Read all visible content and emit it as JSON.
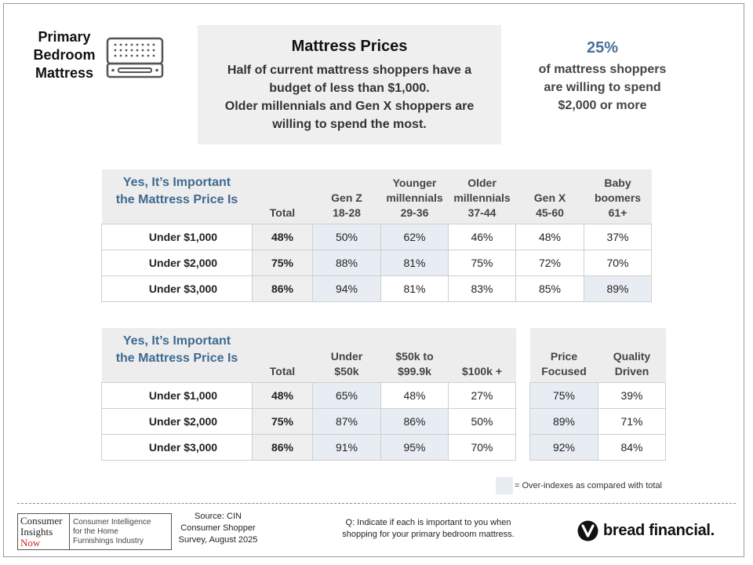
{
  "section": {
    "title_lines": [
      "Primary",
      "Bedroom",
      "Mattress"
    ]
  },
  "headline": {
    "title": "Mattress Prices",
    "body_lines": [
      "Half of current mattress shoppers have a",
      "budget of less than $1,000.",
      "Older millennials and Gen X shoppers are",
      "willing to spend the most."
    ]
  },
  "stat": {
    "value": "25%",
    "lines": [
      "of mattress shoppers",
      "are willing to spend",
      "$2,000 or more"
    ]
  },
  "table1": {
    "question_lines": [
      "Yes, It’s Important",
      "the Mattress Price Is"
    ],
    "columns": [
      {
        "lines": [
          "Total"
        ]
      },
      {
        "lines": [
          "Gen Z",
          "18-28"
        ]
      },
      {
        "lines": [
          "Younger",
          "millennials",
          "29-36"
        ]
      },
      {
        "lines": [
          "Older",
          "millennials",
          "37-44"
        ]
      },
      {
        "lines": [
          "Gen X",
          "45-60"
        ]
      },
      {
        "lines": [
          "Baby",
          "boomers",
          "61+"
        ]
      }
    ],
    "rows": [
      {
        "label": "Under $1,000",
        "values": [
          "48%",
          "50%",
          "62%",
          "46%",
          "48%",
          "37%"
        ],
        "highlight": [
          false,
          true,
          true,
          false,
          false,
          false
        ]
      },
      {
        "label": "Under $2,000",
        "values": [
          "75%",
          "88%",
          "81%",
          "75%",
          "72%",
          "70%"
        ],
        "highlight": [
          false,
          true,
          true,
          false,
          false,
          false
        ]
      },
      {
        "label": "Under $3,000",
        "values": [
          "86%",
          "94%",
          "81%",
          "83%",
          "85%",
          "89%"
        ],
        "highlight": [
          false,
          true,
          false,
          false,
          false,
          true
        ]
      }
    ]
  },
  "table2": {
    "question_lines": [
      "Yes, It’s Important",
      "the Mattress Price Is"
    ],
    "columns": [
      {
        "lines": [
          "Total"
        ]
      },
      {
        "lines": [
          "Under",
          "$50k"
        ]
      },
      {
        "lines": [
          "$50k to",
          "$99.9k"
        ]
      },
      {
        "lines": [
          "$100k +"
        ]
      }
    ],
    "rows": [
      {
        "label": "Under $1,000",
        "values": [
          "48%",
          "65%",
          "48%",
          "27%"
        ],
        "highlight": [
          false,
          true,
          false,
          false
        ]
      },
      {
        "label": "Under $2,000",
        "values": [
          "75%",
          "87%",
          "86%",
          "50%"
        ],
        "highlight": [
          false,
          true,
          true,
          false
        ]
      },
      {
        "label": "Under $3,000",
        "values": [
          "86%",
          "91%",
          "95%",
          "70%"
        ],
        "highlight": [
          false,
          true,
          true,
          false
        ]
      }
    ]
  },
  "table3": {
    "columns": [
      {
        "lines": [
          "Price",
          "Focused"
        ]
      },
      {
        "lines": [
          "Quality",
          "Driven"
        ]
      }
    ],
    "rows": [
      {
        "values": [
          "75%",
          "39%"
        ],
        "highlight": [
          true,
          false
        ]
      },
      {
        "values": [
          "89%",
          "71%"
        ],
        "highlight": [
          true,
          false
        ]
      },
      {
        "values": [
          "92%",
          "84%"
        ],
        "highlight": [
          true,
          false
        ]
      }
    ]
  },
  "legend": {
    "text": "= Over-indexes as compared with total",
    "color": "#e8edf4"
  },
  "footer": {
    "logo_left_lines": [
      "Consumer",
      "Insights",
      "Now"
    ],
    "logo_right_lines": [
      "Consumer Intelligence",
      "for the Home",
      "Furnishings Industry"
    ],
    "source_lines": [
      "Source: CIN",
      "Consumer Shopper",
      "Survey, August 2025"
    ],
    "question_lines": [
      "Q:  Indicate if each is important to you when",
      "shopping for your primary bedroom mattress."
    ],
    "brand": "bread financial",
    "brand_mark": "."
  }
}
